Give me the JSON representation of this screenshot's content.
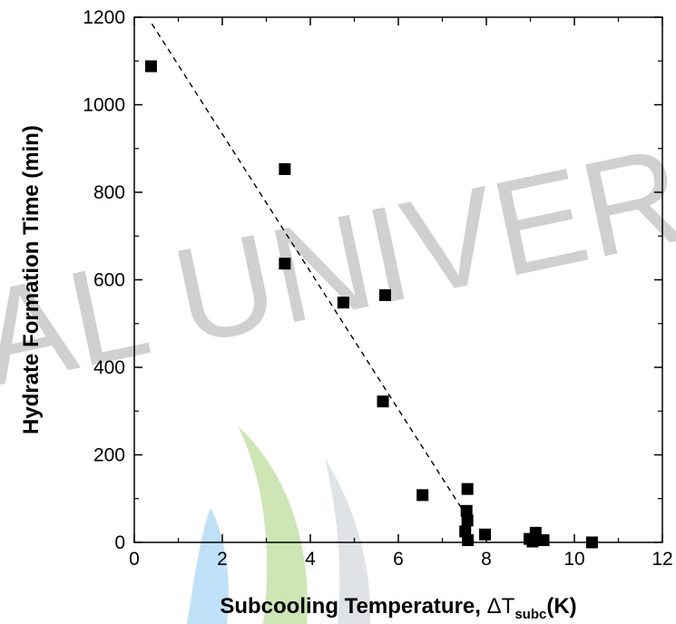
{
  "watermark": {
    "text": "NAL UNIVERS",
    "colors": {
      "text": "#d0d0d0",
      "blue": "#bfe1f7",
      "green": "#cde6b4",
      "gray": "#dfe3e5"
    }
  },
  "chart_data": {
    "type": "scatter",
    "xlabel": {
      "main": "Subcooling Temperature,",
      "symbol": "ΔT",
      "subscript": "subc",
      "unit": "(K)"
    },
    "ylabel": "Hydrate Formation Time (min)",
    "xlim": [
      0,
      12
    ],
    "ylim": [
      0,
      1200
    ],
    "x_ticks": [
      0,
      2,
      4,
      6,
      8,
      10,
      12
    ],
    "y_ticks": [
      0,
      200,
      400,
      600,
      800,
      1000,
      1200
    ],
    "x_minor_ticks": [
      1,
      3,
      5,
      7,
      9,
      11
    ],
    "y_minor_ticks": [
      100,
      300,
      500,
      700,
      900,
      1100
    ],
    "grid": false,
    "marker": "square",
    "marker_color": "#000000",
    "series": [
      {
        "x": [
          0.38,
          3.42,
          3.42,
          4.75,
          5.7,
          5.65,
          6.55,
          7.57,
          7.55,
          7.57,
          7.52,
          7.58,
          7.97,
          8.98,
          9.12,
          9.05,
          9.3,
          10.4
        ],
        "y": [
          1088,
          853,
          637,
          548,
          565,
          322,
          108,
          122,
          72,
          50,
          25,
          5,
          18,
          8,
          22,
          2,
          5,
          0
        ]
      }
    ],
    "fit_line": {
      "style": "dashed",
      "x": [
        0.4,
        7.55
      ],
      "y": [
        1185,
        60
      ]
    }
  }
}
